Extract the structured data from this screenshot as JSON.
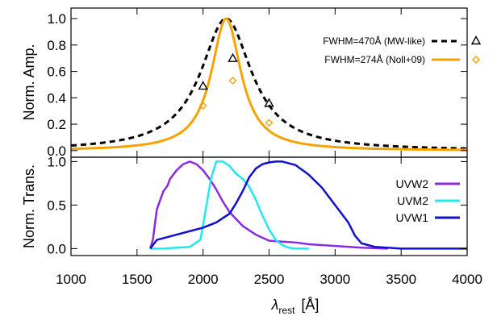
{
  "chart_data": [
    {
      "type": "line",
      "ylabel": "Norm. Amp.",
      "xlim": [
        1000,
        4000
      ],
      "ylim": [
        -0.05,
        1.08
      ],
      "x_ticks": [
        1000,
        1500,
        2000,
        2500,
        3000,
        3500,
        4000
      ],
      "y_ticks": [
        0.0,
        0.2,
        0.4,
        0.6,
        0.8,
        1.0
      ],
      "y_tick_labels": [
        "0.0",
        "0.2",
        "0.4",
        "0.6",
        "0.8",
        "1.0"
      ],
      "legend_position": "top-right",
      "series": [
        {
          "name": "FWHM=470Å (MW-like)",
          "style": "dashed",
          "color": "#000000",
          "marker": "triangle",
          "center": 2175,
          "fwhm": 470,
          "points": {
            "x": [
              2000,
              2225,
              2500
            ],
            "y": [
              0.49,
              0.7,
              0.36
            ]
          }
        },
        {
          "name": "FWHM=274Å (Noll+09)",
          "style": "solid",
          "color": "#f5a300",
          "marker": "diamond",
          "center": 2175,
          "fwhm": 274,
          "points": {
            "x": [
              2000,
              2225,
              2500
            ],
            "y": [
              0.34,
              0.53,
              0.21
            ]
          }
        }
      ]
    },
    {
      "type": "line",
      "ylabel": "Norm. Trans.",
      "xlabel_main": "λ",
      "xlabel_sub": "rest",
      "xlabel_unit": "[Å]",
      "xlim": [
        1000,
        4000
      ],
      "ylim": [
        -0.08,
        1.05
      ],
      "x_ticks": [
        1000,
        1500,
        2000,
        2500,
        3000,
        3500,
        4000
      ],
      "x_tick_labels": [
        "1000",
        "1500",
        "2000",
        "2500",
        "3000",
        "3500",
        "4000"
      ],
      "y_ticks": [
        0.0,
        0.5,
        1.0
      ],
      "y_tick_labels": [
        "0.0",
        "0.5",
        "1.0"
      ],
      "legend_position": "right",
      "series": [
        {
          "name": "UVW2",
          "color": "#8a2be2",
          "x": [
            1600,
            1620,
            1650,
            1700,
            1730,
            1750,
            1800,
            1850,
            1900,
            1950,
            2000,
            2050,
            2100,
            2150,
            2200,
            2250,
            2300,
            2400,
            2500,
            2600,
            2700,
            2800,
            2900,
            3000,
            3200,
            3400
          ],
          "y": [
            0.0,
            0.1,
            0.45,
            0.66,
            0.72,
            0.8,
            0.9,
            0.97,
            1.0,
            0.97,
            0.9,
            0.8,
            0.68,
            0.54,
            0.42,
            0.34,
            0.26,
            0.16,
            0.09,
            0.08,
            0.07,
            0.05,
            0.04,
            0.03,
            0.01,
            0.0
          ]
        },
        {
          "name": "UVM2",
          "color": "#22e8f0",
          "x": [
            1600,
            1700,
            1800,
            1900,
            1980,
            2020,
            2060,
            2100,
            2150,
            2200,
            2250,
            2300,
            2350,
            2400,
            2450,
            2500,
            2550,
            2600,
            2650,
            2700,
            2800
          ],
          "y": [
            0.0,
            0.0,
            0.01,
            0.02,
            0.1,
            0.45,
            0.8,
            1.0,
            1.0,
            0.95,
            0.86,
            0.8,
            0.71,
            0.56,
            0.38,
            0.22,
            0.1,
            0.04,
            0.01,
            0.0,
            0.0
          ]
        },
        {
          "name": "UVW1",
          "color": "#1010d0",
          "x": [
            1600,
            1650,
            1700,
            1800,
            1900,
            2000,
            2100,
            2200,
            2250,
            2300,
            2350,
            2400,
            2450,
            2500,
            2550,
            2600,
            2650,
            2700,
            2800,
            2900,
            3000,
            3100,
            3150,
            3200,
            3300,
            3500,
            4000
          ],
          "y": [
            0.0,
            0.1,
            0.12,
            0.16,
            0.2,
            0.24,
            0.3,
            0.4,
            0.52,
            0.66,
            0.82,
            0.92,
            0.97,
            0.99,
            1.0,
            1.0,
            0.98,
            0.96,
            0.85,
            0.7,
            0.5,
            0.3,
            0.15,
            0.06,
            0.02,
            0.0,
            0.0
          ]
        }
      ]
    }
  ]
}
